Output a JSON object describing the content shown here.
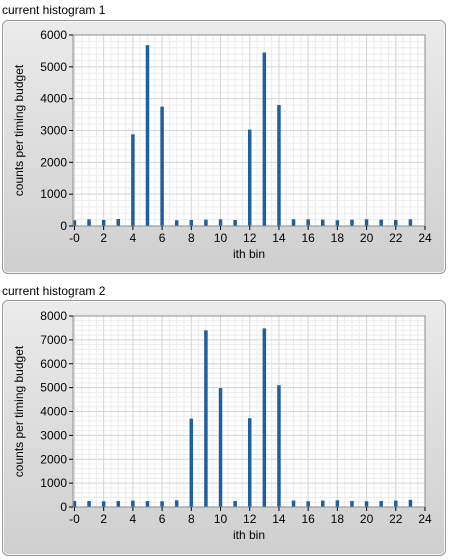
{
  "chart_data": [
    {
      "type": "bar",
      "title": "current histogram 1",
      "xlabel": "ith bin",
      "ylabel": "counts per timing budget",
      "xlim": [
        -0.1,
        24
      ],
      "ylim": [
        0,
        6000
      ],
      "xticks": [
        "-0",
        "2",
        "4",
        "6",
        "8",
        "10",
        "12",
        "14",
        "16",
        "18",
        "20",
        "22",
        "24"
      ],
      "yticks": [
        "0",
        "1000",
        "2000",
        "3000",
        "4000",
        "5000",
        "6000"
      ],
      "grid": true,
      "bar_color": "#1f5fa0",
      "x": [
        0,
        1,
        2,
        3,
        4,
        5,
        6,
        7,
        8,
        9,
        10,
        11,
        12,
        13,
        14,
        15,
        16,
        17,
        18,
        19,
        20,
        21,
        22,
        23
      ],
      "values": [
        180,
        210,
        190,
        220,
        2880,
        5680,
        3750,
        180,
        190,
        200,
        210,
        190,
        3030,
        5450,
        3800,
        210,
        210,
        200,
        180,
        200,
        210,
        200,
        190,
        210
      ]
    },
    {
      "type": "bar",
      "title": "current histogram 2",
      "xlabel": "ith bin",
      "ylabel": "counts per timing budget",
      "xlim": [
        -0.1,
        24
      ],
      "ylim": [
        0,
        8000
      ],
      "xticks": [
        "-0",
        "2",
        "4",
        "6",
        "8",
        "10",
        "12",
        "14",
        "16",
        "18",
        "20",
        "22",
        "24"
      ],
      "yticks": [
        "0",
        "1000",
        "2000",
        "3000",
        "4000",
        "5000",
        "6000",
        "7000",
        "8000"
      ],
      "grid": true,
      "bar_color": "#1f5fa0",
      "x": [
        0,
        1,
        2,
        3,
        4,
        5,
        6,
        7,
        8,
        9,
        10,
        11,
        12,
        13,
        14,
        15,
        16,
        17,
        18,
        19,
        20,
        21,
        22,
        23
      ],
      "values": [
        250,
        250,
        240,
        250,
        270,
        250,
        240,
        280,
        3700,
        7400,
        4980,
        250,
        3720,
        7480,
        5100,
        270,
        240,
        270,
        280,
        250,
        240,
        250,
        270,
        300
      ]
    }
  ]
}
